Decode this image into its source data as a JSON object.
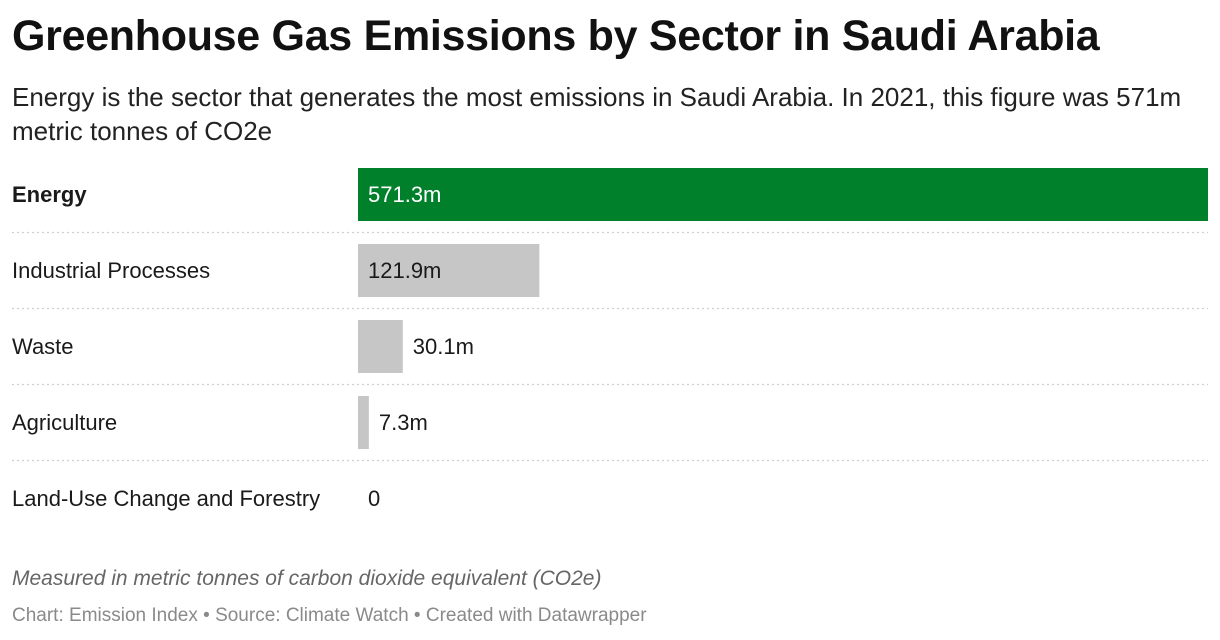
{
  "header": {
    "title": "Greenhouse Gas Emissions by Sector in Saudi Arabia",
    "subtitle": "Energy is the sector that generates the most emissions in Saudi Arabia. In 2021, this figure was 571m metric tonnes of CO2e"
  },
  "chart_data": {
    "type": "bar",
    "orientation": "horizontal",
    "categories": [
      "Energy",
      "Industrial Processes",
      "Waste",
      "Agriculture",
      "Land-Use Change and Forestry"
    ],
    "values": [
      571.3,
      121.9,
      30.1,
      7.3,
      0
    ],
    "value_labels": [
      "571.3m",
      "121.9m",
      "30.1m",
      "7.3m",
      "0"
    ],
    "highlighted": "Energy",
    "xlim": [
      0,
      571.3
    ],
    "grid": false,
    "colors": {
      "highlight": "#00802b",
      "default": "#c6c6c6",
      "separator": "#cfcfcf"
    }
  },
  "notes": "Measured in metric tonnes of carbon dioxide equivalent (CO2e)",
  "footer": "Chart: Emission Index • Source: Climate Watch • Created with Datawrapper"
}
